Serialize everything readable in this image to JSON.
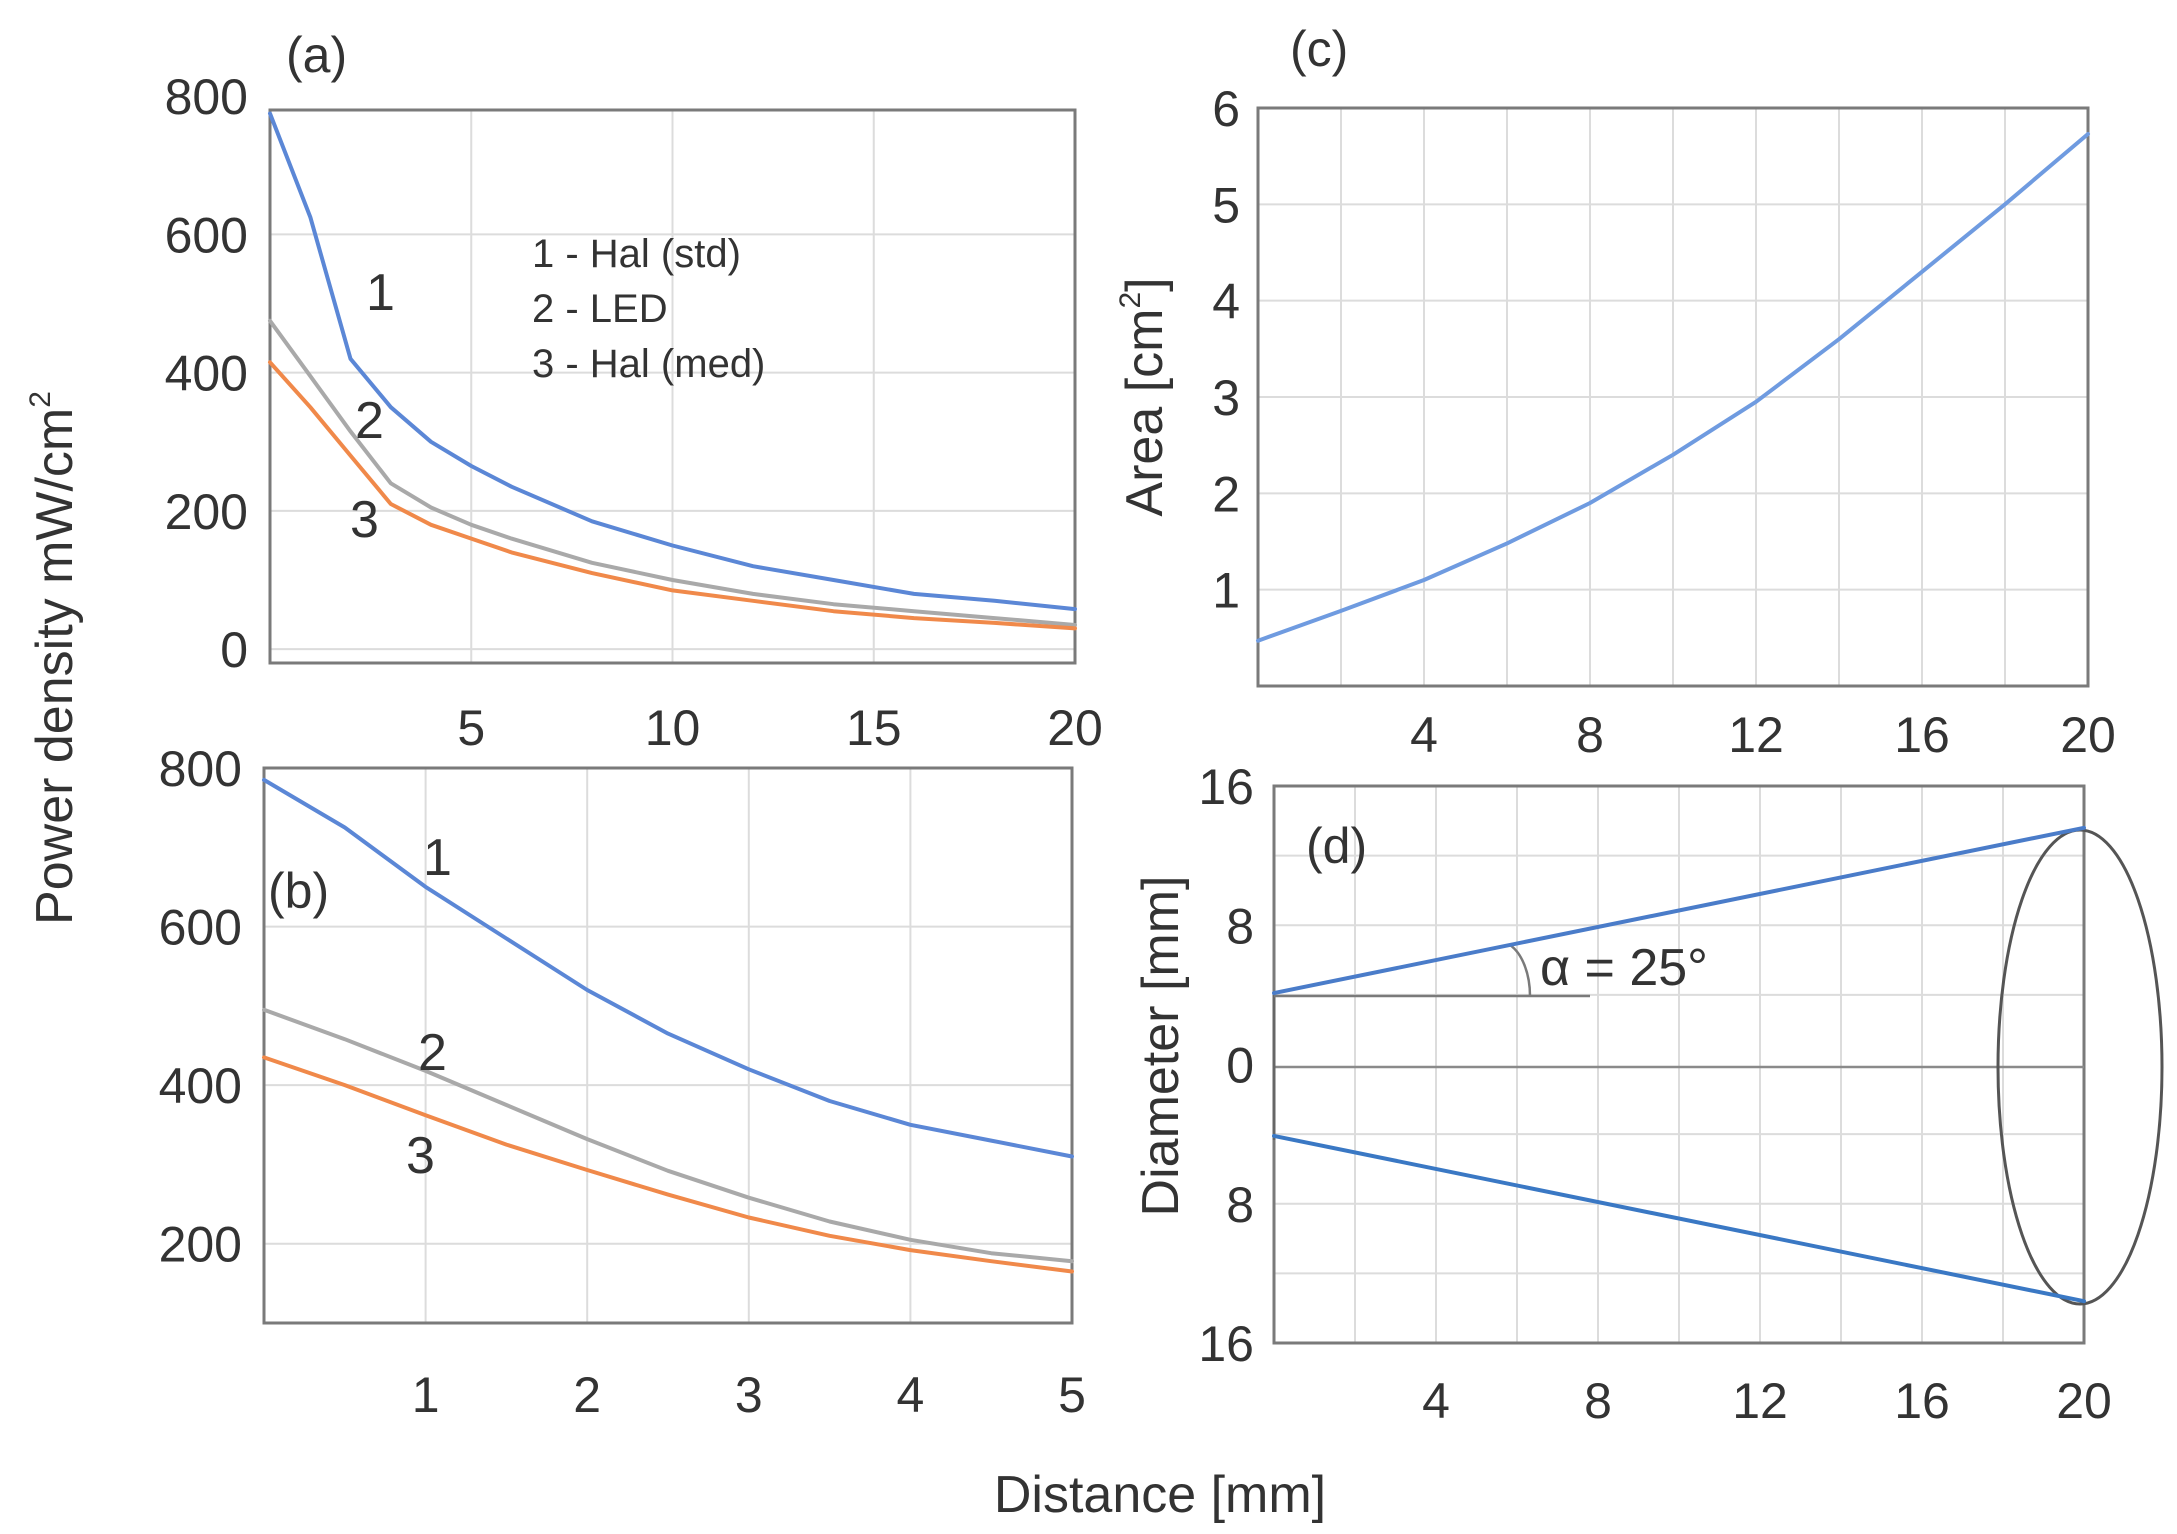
{
  "chart_data": [
    {
      "panel": "(a)",
      "type": "line",
      "xlabel": "Distance [mm]",
      "ylabel": "Power density mW/cm",
      "ylabel_superscript": "2",
      "xlim": [
        0,
        20
      ],
      "ylim": [
        -20,
        780
      ],
      "xticks": [
        5,
        10,
        15,
        20
      ],
      "yticks": [
        0,
        200,
        400,
        600,
        800
      ],
      "grid": true,
      "legend": [
        "1 - Hal (std)",
        "2 - LED",
        "3 - Hal (med)"
      ],
      "legend_position": "top-center",
      "series": [
        {
          "name": "1",
          "label": "1 - Hal (std)",
          "color": "#5b87d6",
          "x": [
            0,
            1,
            2,
            3,
            4,
            5,
            6,
            8,
            10,
            12,
            14,
            16,
            18,
            20
          ],
          "y": [
            775,
            625,
            420,
            350,
            300,
            265,
            235,
            185,
            150,
            120,
            100,
            80,
            70,
            58
          ]
        },
        {
          "name": "2",
          "label": "2 - LED",
          "color": "#a9a9a9",
          "x": [
            0,
            1,
            2,
            3,
            4,
            5,
            6,
            8,
            10,
            12,
            14,
            16,
            18,
            20
          ],
          "y": [
            475,
            395,
            315,
            240,
            205,
            180,
            160,
            125,
            100,
            80,
            65,
            55,
            45,
            35
          ]
        },
        {
          "name": "3",
          "label": "3 - Hal (med)",
          "color": "#f0894a",
          "x": [
            0,
            1,
            2,
            3,
            4,
            5,
            6,
            8,
            10,
            12,
            14,
            16,
            18,
            20
          ],
          "y": [
            415,
            350,
            280,
            210,
            180,
            160,
            140,
            110,
            85,
            70,
            55,
            45,
            38,
            30
          ]
        }
      ],
      "curve_labels": [
        "1",
        "2",
        "3"
      ]
    },
    {
      "panel": "(b)",
      "type": "line",
      "xlabel": "Distance [mm]",
      "ylabel": "Power density mW/cm",
      "xlim": [
        0,
        5
      ],
      "ylim": [
        100,
        800
      ],
      "xticks": [
        1,
        2,
        3,
        4,
        5
      ],
      "yticks": [
        200,
        400,
        600,
        800
      ],
      "grid": true,
      "series": [
        {
          "name": "1",
          "label": "1 - Hal (std)",
          "color": "#5b87d6",
          "x": [
            0,
            0.5,
            1,
            1.5,
            2,
            2.5,
            3,
            3.5,
            4,
            4.5,
            5
          ],
          "y": [
            785,
            725,
            650,
            585,
            520,
            465,
            420,
            380,
            350,
            330,
            310
          ]
        },
        {
          "name": "2",
          "label": "2 - LED",
          "color": "#a9a9a9",
          "x": [
            0,
            0.5,
            1,
            1.5,
            2,
            2.5,
            3,
            3.5,
            4,
            4.5,
            5
          ],
          "y": [
            495,
            458,
            418,
            375,
            332,
            292,
            258,
            228,
            205,
            188,
            178
          ]
        },
        {
          "name": "3",
          "label": "3 - Hal (med)",
          "color": "#f0894a",
          "x": [
            0,
            0.5,
            1,
            1.5,
            2,
            2.5,
            3,
            3.5,
            4,
            4.5,
            5
          ],
          "y": [
            435,
            400,
            362,
            325,
            293,
            262,
            233,
            210,
            192,
            178,
            165
          ]
        }
      ],
      "curve_labels": [
        "1",
        "2",
        "3"
      ]
    },
    {
      "panel": "(c)",
      "type": "line",
      "xlabel": "Distance [mm]",
      "ylabel": "Area [cm",
      "ylabel_superscript": "2",
      "ylabel_suffix": "]",
      "xlim": [
        0,
        20
      ],
      "ylim": [
        0,
        6
      ],
      "xticks": [
        4,
        8,
        12,
        16,
        20
      ],
      "yticks": [
        1,
        2,
        3,
        4,
        5,
        6
      ],
      "grid": true,
      "series": [
        {
          "name": "Area",
          "color": "#6f9be0",
          "x": [
            0,
            2,
            4,
            6,
            8,
            10,
            12,
            14,
            16,
            18,
            20
          ],
          "y": [
            0.47,
            0.78,
            1.1,
            1.48,
            1.9,
            2.4,
            2.95,
            3.6,
            4.3,
            5.0,
            5.73
          ]
        }
      ]
    },
    {
      "panel": "(d)",
      "type": "line",
      "xlabel": "Distance [mm]",
      "ylabel": "Diameter [mm]",
      "xlim": [
        0,
        20
      ],
      "ylim": [
        -16,
        16
      ],
      "xticks": [
        4,
        8,
        12,
        16,
        20
      ],
      "yticks": [
        16,
        8,
        0,
        8,
        16
      ],
      "grid": true,
      "angle_annotation": "α = 25°",
      "series": [
        {
          "name": "upper edge",
          "color": "#4a7cc9",
          "x": [
            0,
            20
          ],
          "y": [
            4.1,
            13.6
          ]
        },
        {
          "name": "lower edge",
          "color": "#3a78c4",
          "x": [
            0,
            20
          ],
          "y": [
            -4.1,
            -13.6
          ]
        }
      ]
    }
  ],
  "shared_xlabel": "Distance [mm]"
}
